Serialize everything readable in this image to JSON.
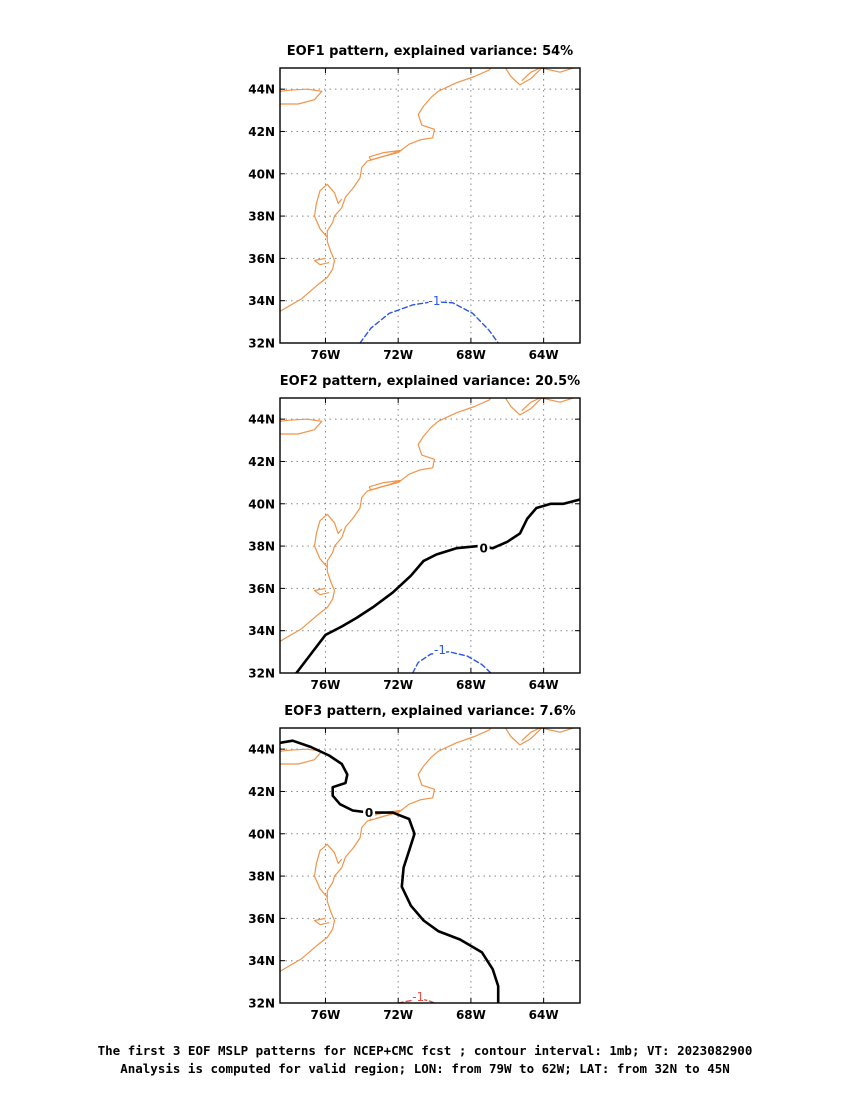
{
  "chart_data": [
    {
      "type": "contour-map",
      "title": "EOF1 pattern, explained variance: 54%",
      "x_ticks": [
        "76W",
        "72W",
        "68W",
        "64W"
      ],
      "y_ticks": [
        "32N",
        "34N",
        "36N",
        "38N",
        "40N",
        "42N",
        "44N"
      ],
      "xlim": [
        -78.5,
        -62
      ],
      "ylim": [
        32,
        45
      ],
      "grid": true,
      "contours": [
        {
          "label": "-1",
          "value": -1,
          "style": "dashed",
          "color": "#2a55e8",
          "points": [
            [
              -74.1,
              32
            ],
            [
              -73.5,
              32.7
            ],
            [
              -72.5,
              33.4
            ],
            [
              -71.2,
              33.8
            ],
            [
              -70.1,
              33.95
            ],
            [
              -69.0,
              33.9
            ],
            [
              -67.9,
              33.4
            ],
            [
              -67.0,
              32.6
            ],
            [
              -66.5,
              32
            ]
          ],
          "label_at": [
            -70.0,
            34.0
          ]
        }
      ]
    },
    {
      "type": "contour-map",
      "title": "EOF2 pattern, explained variance: 20.5%",
      "x_ticks": [
        "76W",
        "72W",
        "68W",
        "64W"
      ],
      "y_ticks": [
        "32N",
        "34N",
        "36N",
        "38N",
        "40N",
        "42N",
        "44N"
      ],
      "xlim": [
        -78.5,
        -62
      ],
      "ylim": [
        32,
        45
      ],
      "grid": true,
      "contours": [
        {
          "label": "0",
          "value": 0,
          "style": "solid",
          "color": "#000000",
          "width": 2.6,
          "points": [
            [
              -77.6,
              32
            ],
            [
              -76.8,
              32.9
            ],
            [
              -76.0,
              33.8
            ],
            [
              -75.1,
              34.2
            ],
            [
              -74.3,
              34.6
            ],
            [
              -73.4,
              35.1
            ],
            [
              -72.3,
              35.8
            ],
            [
              -71.3,
              36.6
            ],
            [
              -70.6,
              37.3
            ],
            [
              -69.9,
              37.6
            ],
            [
              -68.8,
              37.9
            ],
            [
              -67.6,
              38.0
            ],
            [
              -66.8,
              37.9
            ],
            [
              -66.0,
              38.2
            ],
            [
              -65.3,
              38.6
            ],
            [
              -64.9,
              39.3
            ],
            [
              -64.4,
              39.8
            ],
            [
              -63.6,
              40.0
            ],
            [
              -62.9,
              40.0
            ],
            [
              -62,
              40.2
            ]
          ],
          "label_at": [
            -67.3,
            37.9
          ]
        },
        {
          "label": "-1",
          "value": -1,
          "style": "dashed",
          "color": "#2a55e8",
          "points": [
            [
              -71.2,
              32
            ],
            [
              -70.9,
              32.5
            ],
            [
              -70.2,
              32.9
            ],
            [
              -69.2,
              33.0
            ],
            [
              -68.2,
              32.8
            ],
            [
              -67.4,
              32.4
            ],
            [
              -66.9,
              32
            ]
          ],
          "label_at": [
            -69.7,
            33.1
          ]
        }
      ]
    },
    {
      "type": "contour-map",
      "title": "EOF3 pattern, explained variance: 7.6%",
      "x_ticks": [
        "76W",
        "72W",
        "68W",
        "64W"
      ],
      "y_ticks": [
        "32N",
        "34N",
        "36N",
        "38N",
        "40N",
        "42N",
        "44N"
      ],
      "xlim": [
        -78.5,
        -62
      ],
      "ylim": [
        32,
        45
      ],
      "grid": true,
      "contours": [
        {
          "label": "0",
          "value": 0,
          "style": "solid",
          "color": "#000000",
          "width": 2.6,
          "points": [
            [
              -78.5,
              44.3
            ],
            [
              -77.8,
              44.4
            ],
            [
              -76.8,
              44.1
            ],
            [
              -75.8,
              43.7
            ],
            [
              -75.1,
              43.3
            ],
            [
              -74.8,
              42.8
            ],
            [
              -74.9,
              42.4
            ],
            [
              -75.6,
              42.2
            ],
            [
              -75.6,
              41.8
            ],
            [
              -75.2,
              41.4
            ],
            [
              -74.5,
              41.1
            ],
            [
              -73.6,
              41.0
            ],
            [
              -72.3,
              41.0
            ],
            [
              -71.4,
              40.7
            ],
            [
              -71.1,
              40.0
            ],
            [
              -71.4,
              39.2
            ],
            [
              -71.7,
              38.4
            ],
            [
              -71.8,
              37.5
            ],
            [
              -71.3,
              36.6
            ],
            [
              -70.6,
              35.9
            ],
            [
              -69.8,
              35.4
            ],
            [
              -68.6,
              35.0
            ],
            [
              -67.4,
              34.4
            ],
            [
              -66.8,
              33.6
            ],
            [
              -66.5,
              32.8
            ],
            [
              -66.5,
              32
            ]
          ],
          "label_at": [
            -73.6,
            41.0
          ]
        },
        {
          "label": "-1",
          "value": -1,
          "style": "dashed",
          "color": "#e0504a",
          "points": [
            [
              -72.0,
              32
            ],
            [
              -71.4,
              32.1
            ],
            [
              -70.8,
              32.2
            ],
            [
              -70.3,
              32.1
            ],
            [
              -70.0,
              32
            ]
          ],
          "label_at": [
            -70.9,
            32.3
          ]
        }
      ]
    }
  ],
  "coastline": {
    "color": "#f0954a",
    "segments": [
      [
        [
          -78.5,
          33.5
        ],
        [
          -77.3,
          34.1
        ],
        [
          -76.5,
          34.7
        ],
        [
          -75.9,
          35.1
        ],
        [
          -75.6,
          35.5
        ],
        [
          -75.5,
          35.9
        ],
        [
          -75.7,
          36.3
        ],
        [
          -75.9,
          36.8
        ],
        [
          -75.9,
          37.3
        ],
        [
          -75.6,
          37.7
        ],
        [
          -75.5,
          38.0
        ],
        [
          -75.1,
          38.4
        ],
        [
          -74.9,
          38.9
        ],
        [
          -74.5,
          39.3
        ],
        [
          -74.1,
          39.8
        ],
        [
          -74.0,
          40.3
        ],
        [
          -73.7,
          40.6
        ],
        [
          -72.9,
          40.8
        ],
        [
          -72.0,
          41.0
        ],
        [
          -71.4,
          41.4
        ],
        [
          -70.8,
          41.6
        ],
        [
          -70.1,
          41.7
        ],
        [
          -70.0,
          42.1
        ],
        [
          -70.7,
          42.3
        ],
        [
          -70.9,
          42.8
        ],
        [
          -70.6,
          43.2
        ],
        [
          -70.2,
          43.6
        ],
        [
          -69.8,
          43.9
        ],
        [
          -68.8,
          44.3
        ],
        [
          -67.8,
          44.6
        ],
        [
          -67.0,
          44.9
        ],
        [
          -66.9,
          45
        ]
      ],
      [
        [
          -75.9,
          37.0
        ],
        [
          -76.3,
          37.4
        ],
        [
          -76.6,
          38.0
        ],
        [
          -76.5,
          38.6
        ],
        [
          -76.3,
          39.2
        ],
        [
          -75.9,
          39.5
        ],
        [
          -75.5,
          39.1
        ],
        [
          -75.3,
          38.6
        ],
        [
          -75.1,
          38.8
        ]
      ],
      [
        [
          -76.0,
          36.0
        ],
        [
          -76.6,
          35.9
        ],
        [
          -76.3,
          35.7
        ],
        [
          -75.8,
          35.8
        ]
      ],
      [
        [
          -73.6,
          40.8
        ],
        [
          -72.8,
          41.0
        ],
        [
          -71.9,
          41.1
        ],
        [
          -72.5,
          40.9
        ],
        [
          -73.5,
          40.65
        ],
        [
          -73.6,
          40.8
        ]
      ],
      [
        [
          -78.5,
          43.3
        ],
        [
          -77.5,
          43.3
        ],
        [
          -76.6,
          43.5
        ],
        [
          -76.2,
          43.9
        ],
        [
          -77.0,
          44.0
        ],
        [
          -78.0,
          43.95
        ],
        [
          -78.5,
          43.9
        ]
      ],
      [
        [
          -66.1,
          45
        ],
        [
          -65.8,
          44.6
        ],
        [
          -65.3,
          44.2
        ],
        [
          -64.7,
          44.5
        ],
        [
          -64.1,
          45
        ],
        [
          -63.1,
          44.8
        ],
        [
          -62,
          45.1
        ]
      ],
      [
        [
          -64.2,
          45
        ],
        [
          -64.7,
          44.8
        ],
        [
          -65.2,
          44.4
        ]
      ]
    ]
  },
  "caption": {
    "line1": "The first 3 EOF MSLP patterns for NCEP+CMC fcst ; contour interval: 1mb; VT: 2023082900",
    "line2": "Analysis is computed for valid region; LON: from 79W to 62W; LAT: from 32N to 45N"
  }
}
